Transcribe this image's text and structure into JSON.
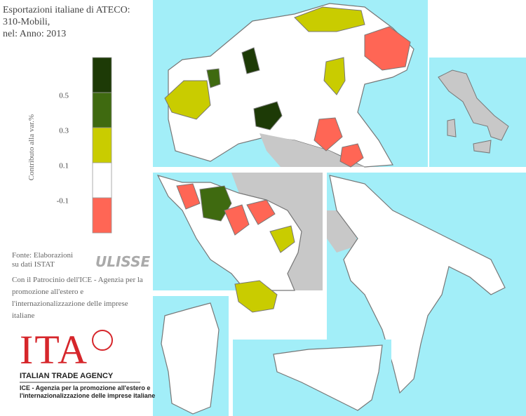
{
  "header": {
    "title_lines": [
      "Esportazioni italiane di ATECO:",
      "310-Mobili,",
      "nel: Anno: 2013"
    ]
  },
  "legend": {
    "label": "Contributo alla var.%",
    "colors": [
      "#1d3a06",
      "#3f6a10",
      "#c9cc00",
      "#ffffff",
      "#ff6655"
    ],
    "ticks": [
      0.5,
      0.3,
      0.1,
      -0.1
    ]
  },
  "source": [
    "Fonte: Elaborazioni",
    "su dati ISTAT"
  ],
  "source_logo": "ULISSE",
  "patronage": [
    "Con il Patrocinio dell'ICE - Agenzia per la",
    "promozione all'estero e",
    "l'internazionalizzazione delle imprese",
    "italiane"
  ],
  "logo": {
    "mark": "ITA",
    "name": "ITALIAN TRADE AGENCY",
    "lines": [
      "ICE - Agenzia per la promozione all'estero e",
      "l'internazionalizzazione delle imprese italiane"
    ]
  }
}
